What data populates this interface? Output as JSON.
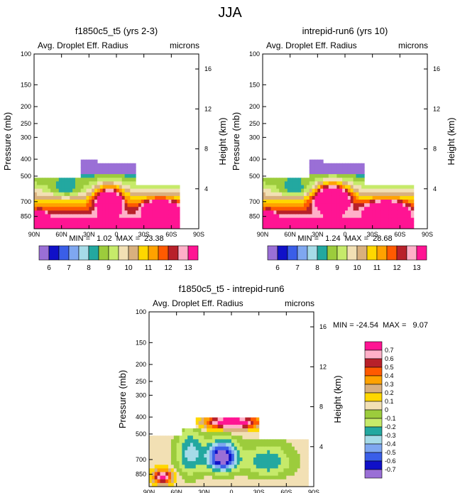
{
  "page_title": "JJA",
  "colors": {
    "abs_scale": [
      "#9a6fd6",
      "#1010c8",
      "#3a5ee8",
      "#7fa7f0",
      "#a6dbe8",
      "#23a8a0",
      "#9ccc3c",
      "#c6ea6a",
      "#f2e0b4",
      "#d9b07e",
      "#ffd700",
      "#ffa200",
      "#ff5a00",
      "#b8202a",
      "#ffb0c8",
      "#ff1493"
    ],
    "diff_scale": [
      "#9a6fd6",
      "#1010c8",
      "#3a5ee8",
      "#7fa7f0",
      "#a6dbe8",
      "#23a8a0",
      "#c6ea6a",
      "#9ccc3c",
      "#f2e0b4",
      "#ffd700",
      "#d9b07e",
      "#ffa200",
      "#ff5a00",
      "#b8202a",
      "#ffb0c8",
      "#ff1493"
    ]
  },
  "panels": [
    {
      "title": "f1850c5_t5 (yrs 2-3)",
      "variable": "Avg. Droplet Eff. Radius",
      "units": "microns",
      "ylabel": "Pressure (mb)",
      "ylabel_right": "Height (km)",
      "stats": "MIN =   1.02  MAX =  23.38"
    },
    {
      "title": "intrepid-run6 (yrs 10)",
      "variable": "Avg. Droplet Eff. Radius",
      "units": "microns",
      "ylabel": "Pressure (mb)",
      "ylabel_right": "Height (km)",
      "stats": "MIN =   1.24  MAX =  28.68"
    },
    {
      "title": "f1850c5_t5 - intrepid-run6",
      "variable": "Avg. Droplet Eff. Radius",
      "units": "microns",
      "ylabel": "Pressure (mb)",
      "ylabel_right": "Height (km)",
      "stats": "MIN = -24.54  MAX =   9.07"
    }
  ],
  "chart_data": [
    {
      "type": "heatmap",
      "title": "f1850c5_t5 (yrs 2-3)",
      "subtitle": "Avg. Droplet Eff. Radius",
      "units": "microns",
      "x_ticks": [
        "90N",
        "60N",
        "30N",
        "0",
        "30S",
        "60S",
        "90S"
      ],
      "x_values": [
        90,
        60,
        30,
        0,
        -30,
        -60,
        -90
      ],
      "y_ticks": [
        "100",
        "150",
        "200",
        "250",
        "300",
        "400",
        "500",
        "700",
        "850"
      ],
      "y_values": [
        100,
        150,
        200,
        250,
        300,
        400,
        500,
        700,
        850
      ],
      "y_right_ticks": [
        "16",
        "12",
        "8",
        "4"
      ],
      "y_right_values": [
        16,
        12,
        8,
        4
      ],
      "ylim": [
        100,
        1000
      ],
      "xlim": [
        90,
        -90
      ],
      "min": 1.02,
      "max": 23.38,
      "legend_labels": [
        "6",
        "7",
        "8",
        "9",
        "10",
        "11",
        "12",
        "13"
      ],
      "features": [
        {
          "label": "13",
          "lat": 8,
          "p": 700
        },
        {
          "label": "12",
          "lat": -48,
          "p": 750
        },
        {
          "label": "13",
          "lat": 85,
          "p": 880
        },
        {
          "label": "9",
          "lat": 65,
          "p": 560
        },
        {
          "label": "7",
          "lat": 40,
          "p": 440
        }
      ]
    },
    {
      "type": "heatmap",
      "title": "intrepid-run6 (yrs 10)",
      "subtitle": "Avg. Droplet Eff. Radius",
      "units": "microns",
      "x_ticks": [
        "90N",
        "60N",
        "30N",
        "0",
        "30S",
        "60S",
        "90S"
      ],
      "x_values": [
        90,
        60,
        30,
        0,
        -30,
        -60,
        -90
      ],
      "y_ticks": [
        "100",
        "150",
        "200",
        "250",
        "300",
        "400",
        "500",
        "700",
        "850"
      ],
      "y_values": [
        100,
        150,
        200,
        250,
        300,
        400,
        500,
        700,
        850
      ],
      "y_right_ticks": [
        "16",
        "12",
        "8",
        "4"
      ],
      "y_right_values": [
        16,
        12,
        8,
        4
      ],
      "ylim": [
        100,
        1000
      ],
      "xlim": [
        90,
        -90
      ],
      "min": 1.24,
      "max": 28.68,
      "legend_labels": [
        "6",
        "7",
        "8",
        "9",
        "10",
        "11",
        "12",
        "13"
      ],
      "features": [
        {
          "label": "13",
          "lat": 15,
          "p": 680
        },
        {
          "label": "12",
          "lat": -45,
          "p": 760
        },
        {
          "label": "13",
          "lat": 85,
          "p": 880
        },
        {
          "label": "9",
          "lat": 70,
          "p": 560
        },
        {
          "label": "6",
          "lat": 45,
          "p": 440
        }
      ]
    },
    {
      "type": "heatmap",
      "title": "f1850c5_t5 - intrepid-run6",
      "subtitle": "Avg. Droplet Eff. Radius",
      "units": "microns",
      "x_ticks": [
        "90N",
        "60N",
        "30N",
        "0",
        "30S",
        "60S",
        "90S"
      ],
      "x_values": [
        90,
        60,
        30,
        0,
        -30,
        -60,
        -90
      ],
      "y_ticks": [
        "100",
        "150",
        "200",
        "250",
        "300",
        "400",
        "500",
        "700",
        "850"
      ],
      "y_values": [
        100,
        150,
        200,
        250,
        300,
        400,
        500,
        700,
        850
      ],
      "y_right_ticks": [
        "16",
        "12",
        "8",
        "4"
      ],
      "y_right_values": [
        16,
        12,
        8,
        4
      ],
      "ylim": [
        100,
        1000
      ],
      "xlim": [
        90,
        -90
      ],
      "min": -24.54,
      "max": 9.07,
      "legend_labels": [
        "0.7",
        "0.6",
        "0.5",
        "0.4",
        "0.3",
        "0.2",
        "0.1",
        "0",
        "-0.1",
        "-0.2",
        "-0.3",
        "-0.4",
        "-0.5",
        "-0.6",
        "-0.7"
      ],
      "features": [
        {
          "label": "-0.7",
          "lat": 12,
          "p": 680
        },
        {
          "label": "0.7",
          "lat": 0,
          "p": 440
        },
        {
          "label": "0.7",
          "lat": 70,
          "p": 880
        }
      ]
    }
  ]
}
